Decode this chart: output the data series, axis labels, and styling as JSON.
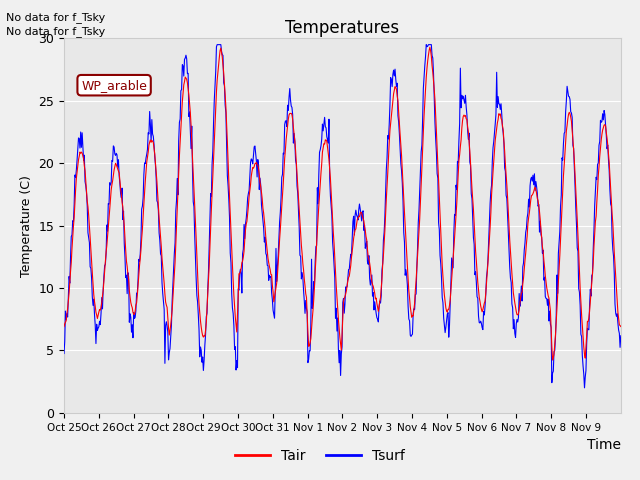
{
  "title": "Temperatures",
  "xlabel": "Time",
  "ylabel": "Temperature (C)",
  "ylim": [
    0,
    30
  ],
  "fig_bg_color": "#f0f0f0",
  "plot_bg_color": "#e8e8e8",
  "grid_color": "#ffffff",
  "tair_color": "red",
  "tsurf_color": "blue",
  "no_data_text": [
    "No data for f_Tsky",
    "No data for f_Tsky"
  ],
  "wp_arable_text": "WP_arable",
  "x_tick_labels": [
    "Oct 25",
    "Oct 26",
    "Oct 27",
    "Oct 28",
    "Oct 29",
    "Oct 30",
    "Oct 31",
    "Nov 1",
    "Nov 2",
    "Nov 3",
    "Nov 4",
    "Nov 5",
    "Nov 6",
    "Nov 7",
    "Nov 8",
    "Nov 9"
  ],
  "num_days": 16,
  "day_max_temps": [
    21,
    20,
    22,
    27,
    29,
    20,
    24,
    22,
    16,
    26,
    29,
    24,
    24,
    18,
    24,
    23
  ],
  "day_min_temps": [
    7,
    8,
    8,
    6,
    6,
    11,
    9,
    5,
    9,
    8,
    8,
    8,
    8,
    8,
    4,
    7
  ],
  "seed": 123
}
